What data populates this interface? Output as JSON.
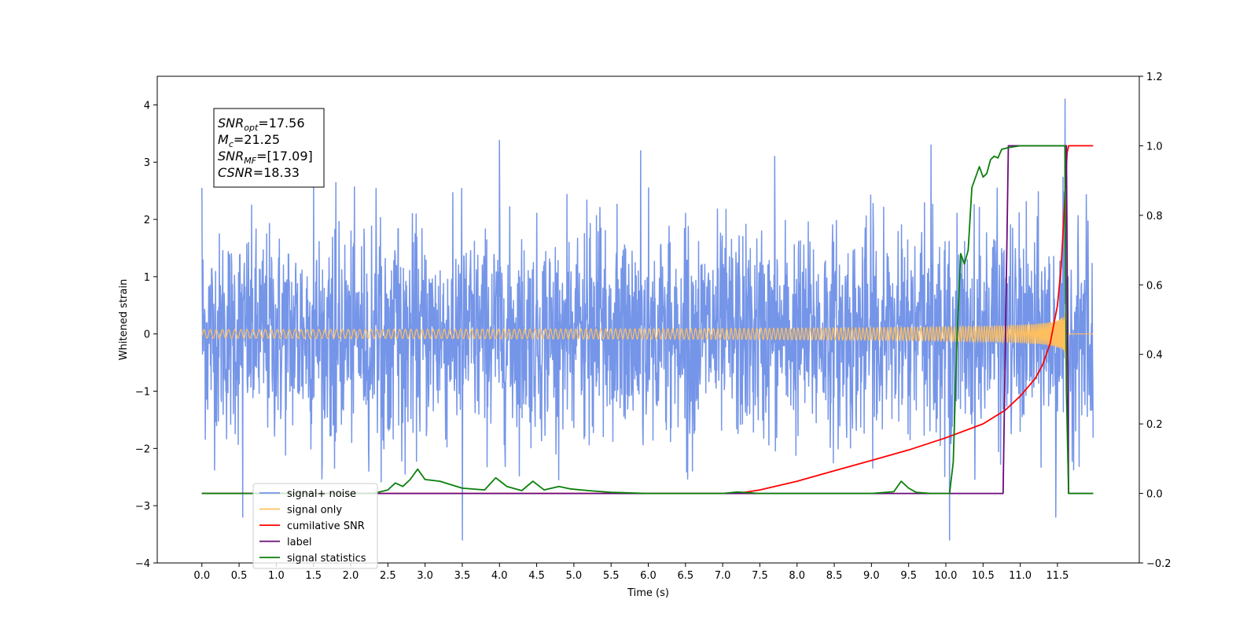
{
  "chart_data": {
    "type": "line",
    "xlabel": "Time (s)",
    "ylabel": "Whitened strain",
    "xlim": [
      -0.6,
      12.6
    ],
    "ylim": [
      -4,
      4.5
    ],
    "y2lim": [
      -0.2,
      1.2
    ],
    "x_ticks": [
      "0.0",
      "0.5",
      "1.0",
      "1.5",
      "2.0",
      "2.5",
      "3.0",
      "3.5",
      "4.0",
      "4.5",
      "5.0",
      "5.5",
      "6.0",
      "6.5",
      "7.0",
      "7.5",
      "8.0",
      "8.5",
      "9.0",
      "9.5",
      "10.0",
      "10.5",
      "11.0",
      "11.5"
    ],
    "y_ticks": [
      "−4",
      "−3",
      "−2",
      "−1",
      "0",
      "1",
      "2",
      "3",
      "4"
    ],
    "y2_ticks": [
      "−0.2",
      "0.0",
      "0.2",
      "0.4",
      "0.6",
      "0.8",
      "1.0",
      "1.2"
    ],
    "legend_position": "lower-left",
    "annotation": {
      "lines": [
        {
          "base": "SNR",
          "sub": "opt",
          "rest": "=17.56"
        },
        {
          "base": "M",
          "sub": "c",
          "rest": "=21.25"
        },
        {
          "base": "SNR",
          "sub": "MF",
          "rest": "=[17.09]"
        },
        {
          "base": "CSNR",
          "sub": "",
          "rest": "=18.33"
        }
      ]
    },
    "series": [
      {
        "name": "signal+ noise",
        "color": "#7595e8",
        "axis": "left",
        "noise": {
          "x_start": 0.0,
          "x_end": 11.98,
          "sigma": 0.9,
          "max_abs_envelope": 2.6
        },
        "peaks": [
          [
            0.0,
            2.55
          ],
          [
            0.55,
            -3.2
          ],
          [
            1.5,
            2.8
          ],
          [
            3.5,
            -3.6
          ],
          [
            4.0,
            3.38
          ],
          [
            5.9,
            3.2
          ],
          [
            7.7,
            3.1
          ],
          [
            9.8,
            3.3
          ],
          [
            10.05,
            -3.6
          ],
          [
            11.6,
            4.1
          ],
          [
            11.48,
            -3.2
          ]
        ]
      },
      {
        "name": "signal only",
        "color": "#ffbf5e",
        "axis": "left",
        "chirp": {
          "x_start": 0.0,
          "x_end": 11.62,
          "t_merger": 11.62,
          "peak_amp": 2.8
        },
        "post_merger_value": 0.0
      },
      {
        "name": "cumilative SNR",
        "color": "#ff0000",
        "axis": "right",
        "x": [
          0.0,
          7.2,
          7.5,
          8.0,
          8.5,
          9.0,
          9.5,
          10.0,
          10.5,
          10.8,
          11.0,
          11.2,
          11.3,
          11.4,
          11.5,
          11.55,
          11.6,
          11.63,
          11.65,
          11.98
        ],
        "y": [
          0.0,
          0.0,
          0.01,
          0.035,
          0.065,
          0.095,
          0.125,
          0.16,
          0.2,
          0.24,
          0.28,
          0.33,
          0.37,
          0.43,
          0.54,
          0.65,
          0.85,
          0.98,
          1.0,
          1.0
        ]
      },
      {
        "name": "label",
        "color": "#6a0a7a",
        "axis": "right",
        "x": [
          0.0,
          10.77,
          10.84,
          11.62,
          11.65,
          11.98
        ],
        "y": [
          0.0,
          0.0,
          1.0,
          1.0,
          0.0,
          0.0
        ]
      },
      {
        "name": "signal statistics",
        "color": "#0a7f0a",
        "axis": "right",
        "x": [
          0.0,
          2.3,
          2.5,
          2.6,
          2.7,
          2.8,
          2.9,
          3.0,
          3.2,
          3.5,
          3.8,
          3.95,
          4.1,
          4.3,
          4.45,
          4.6,
          4.8,
          4.95,
          5.2,
          5.5,
          6.0,
          6.5,
          7.0,
          7.2,
          7.5,
          8.0,
          8.5,
          9.0,
          9.3,
          9.4,
          9.5,
          9.6,
          9.8,
          10.05,
          10.1,
          10.15,
          10.2,
          10.25,
          10.3,
          10.35,
          10.45,
          10.5,
          10.55,
          10.6,
          10.65,
          10.7,
          10.75,
          10.85,
          11.0,
          11.2,
          11.6,
          11.62,
          11.65,
          11.98
        ],
        "y": [
          0.0,
          0.0,
          0.01,
          0.03,
          0.02,
          0.04,
          0.07,
          0.04,
          0.035,
          0.015,
          0.01,
          0.045,
          0.02,
          0.008,
          0.035,
          0.01,
          0.02,
          0.013,
          0.008,
          0.003,
          0.0,
          0.0,
          0.0,
          0.004,
          0.0,
          0.0,
          0.0,
          0.0,
          0.005,
          0.035,
          0.015,
          0.003,
          0.0,
          0.0,
          0.09,
          0.45,
          0.69,
          0.66,
          0.7,
          0.88,
          0.94,
          0.91,
          0.92,
          0.96,
          0.97,
          0.965,
          0.99,
          0.995,
          1.0,
          1.0,
          1.0,
          0.3,
          0.0,
          0.0
        ]
      }
    ]
  }
}
